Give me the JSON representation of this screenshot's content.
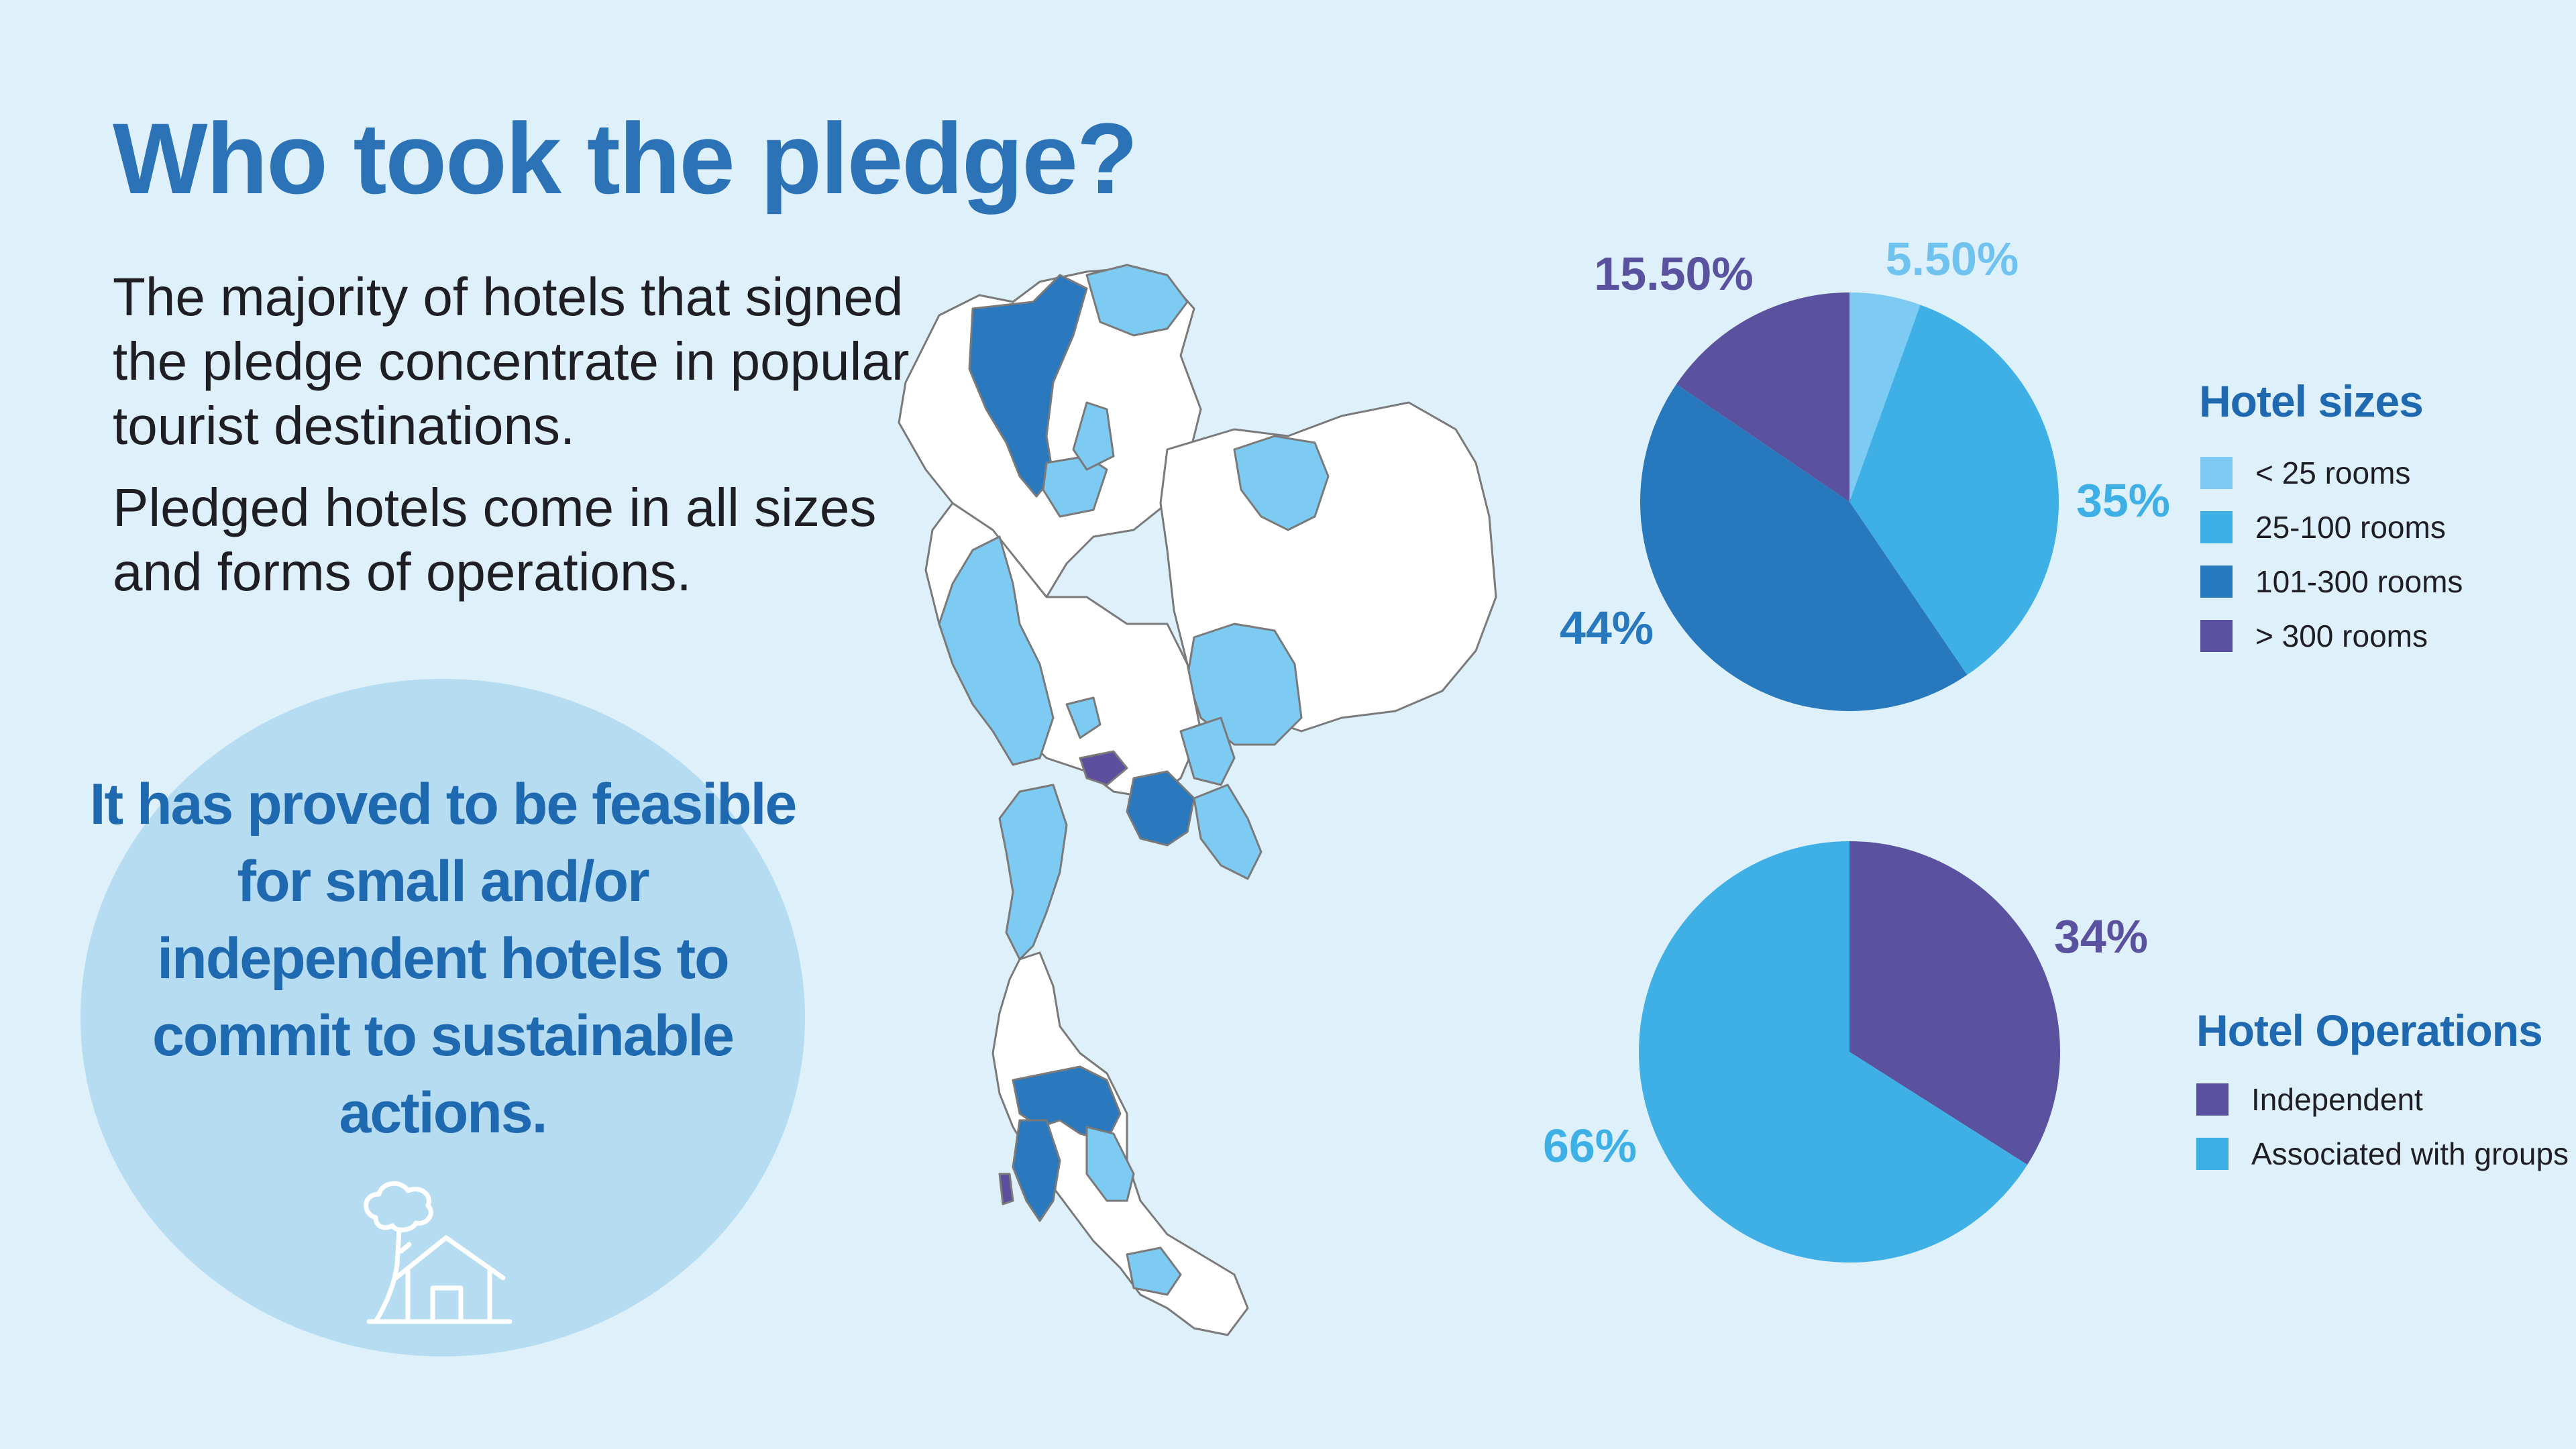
{
  "title": "Who took the pledge?",
  "intro": {
    "p1": "The majority of hotels that signed the pledge concentrate in popular tourist destinations.",
    "p2": "Pledged hotels come in all sizes and forms of operations."
  },
  "callout": {
    "text": "It has proved to be feasible for small and/or independent hotels to commit to sustainable actions.",
    "icon": "house-with-tree-icon"
  },
  "map": {
    "label": "map of Thailand highlighting provinces with pledged hotels",
    "colors": {
      "outline": "#7a7a7a",
      "base": "#ffffff",
      "light": "#7dcaf2",
      "dark": "#2a78be",
      "purple": "#5b4f9e"
    }
  },
  "chart_data": [
    {
      "type": "pie",
      "title": "Hotel sizes",
      "legend_position": "right",
      "slices": [
        {
          "label": "< 25 rooms",
          "value": 5.5,
          "display": "5.50%",
          "color": "#7dcaf2"
        },
        {
          "label": "25-100 rooms",
          "value": 35,
          "display": "35%",
          "color": "#3fb0e6"
        },
        {
          "label": "101-300 rooms",
          "value": 44,
          "display": "44%",
          "color": "#2778bd"
        },
        {
          "label": "> 300 rooms",
          "value": 15.5,
          "display": "15.50%",
          "color": "#5a529e"
        }
      ]
    },
    {
      "type": "pie",
      "title": "Hotel Operations",
      "legend_position": "right",
      "slices": [
        {
          "label": "Independent",
          "value": 34,
          "display": "34%",
          "color": "#5a529e"
        },
        {
          "label": "Associated with groups",
          "value": 66,
          "display": "66%",
          "color": "#3fb0e6"
        }
      ]
    }
  ]
}
